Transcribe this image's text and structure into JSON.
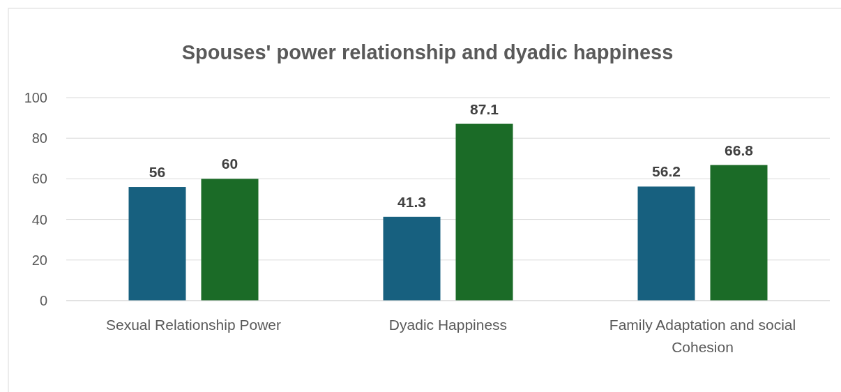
{
  "chart_data": {
    "type": "bar",
    "title": "Spouses' power relationship and dyadic happiness",
    "categories": [
      "Sexual Relationship Power",
      "Dyadic Happiness",
      "Family Adaptation and social Cohesion"
    ],
    "series": [
      {
        "color": "#17607f",
        "values": [
          56,
          41.3,
          56.2
        ]
      },
      {
        "color": "#1b6b27",
        "values": [
          60,
          87.1,
          66.8
        ]
      }
    ],
    "ylim": [
      0,
      100
    ],
    "yticks": [
      0,
      20,
      40,
      60,
      80,
      100
    ],
    "grid": "y",
    "data_labels": true
  }
}
